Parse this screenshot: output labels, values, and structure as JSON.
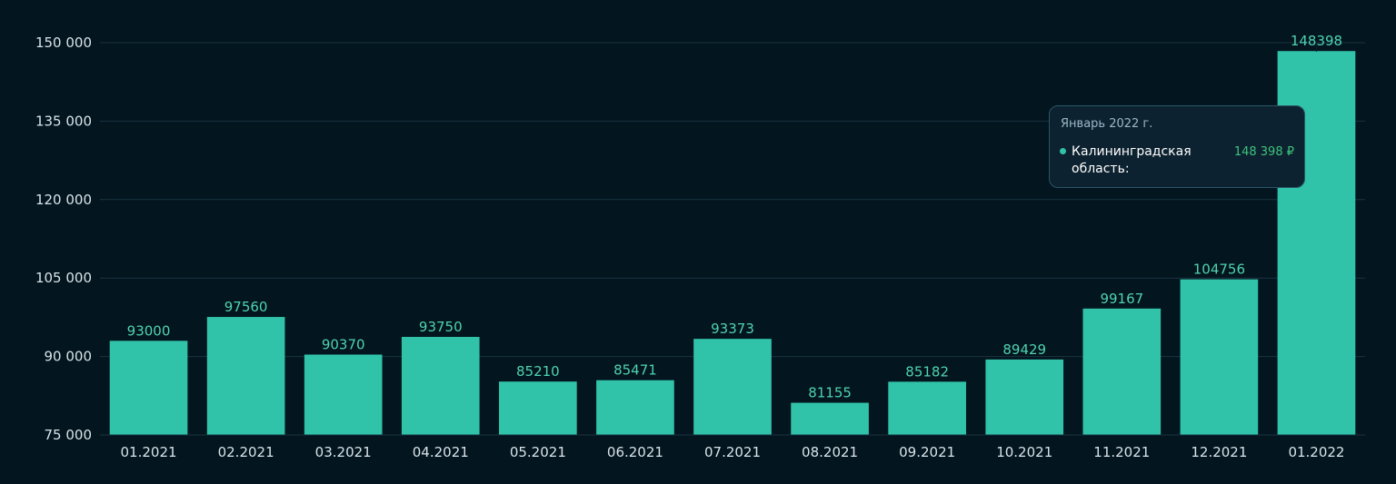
{
  "colors": {
    "background": "#03151e",
    "bar": "#30c3a9",
    "grid": "#1a3442",
    "data_label": "#4fd3b0",
    "tooltip_value": "#3ec47c",
    "axis_text": "#d9e3ea"
  },
  "chart_data": {
    "type": "bar",
    "categories": [
      "01.2021",
      "02.2021",
      "03.2021",
      "04.2021",
      "05.2021",
      "06.2021",
      "07.2021",
      "08.2021",
      "09.2021",
      "10.2021",
      "11.2021",
      "12.2021",
      "01.2022"
    ],
    "series": [
      {
        "name": "Калининградская область",
        "values": [
          93000,
          97560,
          90370,
          93750,
          85210,
          85471,
          93373,
          81155,
          85182,
          89429,
          99167,
          104756,
          148398
        ]
      }
    ],
    "data_labels": [
      "93000",
      "97560",
      "90370",
      "93750",
      "85210",
      "85471",
      "93373",
      "81155",
      "85182",
      "89429",
      "99167",
      "104756",
      "148398"
    ],
    "y_ticks": [
      75000,
      90000,
      105000,
      120000,
      135000,
      150000
    ],
    "y_tick_labels": [
      "75 000",
      "90 000",
      "105 000",
      "120 000",
      "135 000",
      "150 000"
    ],
    "ylim": [
      75000,
      150000
    ],
    "grid": true,
    "legend": "none"
  },
  "tooltip": {
    "title": "Январь 2022 г.",
    "series_label": "Калининградская область:",
    "value": "148 398 ₽"
  }
}
